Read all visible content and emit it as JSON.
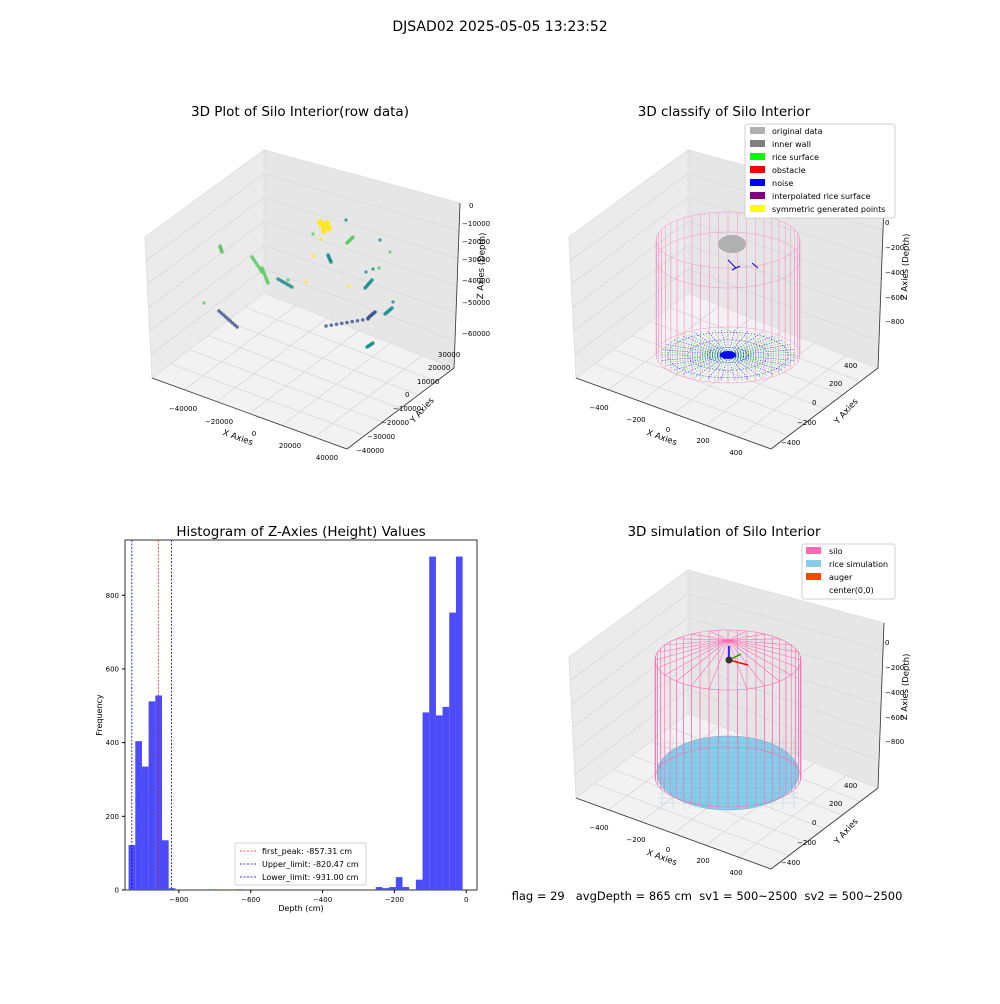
{
  "figure": {
    "suptitle": "DJSAD02 2025-05-05 13:23:52",
    "status_line": "flag = 29   avgDepth = 865 cm  sv1 = 500~2500  sv2 = 500~2500"
  },
  "chart_data": [
    {
      "type": "scatter",
      "title": "3D Plot of Silo Interior(row data)",
      "xlabel": "X Axies",
      "ylabel": "Y Axies",
      "zlabel": "Z Axies (Depth)",
      "x_ticks": [
        "−40000",
        "−20000",
        "0",
        "20000",
        "40000"
      ],
      "y_ticks": [
        "−40000",
        "−30000",
        "−20000",
        "−10000",
        "0",
        "10000",
        "20000",
        "30000"
      ],
      "z_ticks": [
        "0",
        "−10000",
        "−20000",
        "−30000",
        "−40000",
        "−50000",
        "−60000"
      ],
      "colormap": [
        "#440154",
        "#3b528b",
        "#21918c",
        "#5ec962",
        "#fde725"
      ]
    },
    {
      "type": "scatter",
      "title": "3D classify of Silo Interior",
      "xlabel": "X Axies",
      "ylabel": "Y Axies",
      "zlabel": "Z Axies (Depth)",
      "x_ticks": [
        "−400",
        "−200",
        "0",
        "200",
        "400"
      ],
      "y_ticks": [
        "−400",
        "−200",
        "0",
        "200",
        "400"
      ],
      "z_ticks": [
        "0",
        "−200",
        "−400",
        "−600",
        "−800"
      ],
      "legend_position": "top-right",
      "legend": [
        {
          "label": "original data",
          "color": "#b0b0b0"
        },
        {
          "label": "inner wall",
          "color": "#808080"
        },
        {
          "label": "rice surface",
          "color": "#00ff00"
        },
        {
          "label": "obstacle",
          "color": "#ff0000"
        },
        {
          "label": "noise",
          "color": "#0000ff"
        },
        {
          "label": "interpolated rice surface",
          "color": "#800080"
        },
        {
          "label": "symmetric generated points",
          "color": "#ffff00"
        }
      ]
    },
    {
      "type": "bar",
      "title": "Histogram of Z-Axies (Height) Values",
      "xlabel": "Depth (cm)",
      "ylabel": "Frequency",
      "xlim": [
        -950,
        30
      ],
      "ylim": [
        0,
        950
      ],
      "x_ticks": [
        -800,
        -600,
        -400,
        -200,
        0
      ],
      "y_ticks": [
        0,
        200,
        400,
        600,
        800
      ],
      "bin_width": 18.6,
      "bins": [
        {
          "x": -940,
          "v": 122
        },
        {
          "x": -921.4,
          "v": 404
        },
        {
          "x": -902.8,
          "v": 335
        },
        {
          "x": -884.2,
          "v": 512
        },
        {
          "x": -865.6,
          "v": 528
        },
        {
          "x": -847,
          "v": 135
        },
        {
          "x": -828.4,
          "v": 5
        },
        {
          "x": -716.8,
          "v": 2
        },
        {
          "x": -642.4,
          "v": 2
        },
        {
          "x": -251.8,
          "v": 8
        },
        {
          "x": -233.2,
          "v": 5
        },
        {
          "x": -214.6,
          "v": 8
        },
        {
          "x": -196,
          "v": 35
        },
        {
          "x": -177.4,
          "v": 8
        },
        {
          "x": -158.8,
          "v": 2
        },
        {
          "x": -140.2,
          "v": 28
        },
        {
          "x": -121.6,
          "v": 482
        },
        {
          "x": -103,
          "v": 905
        },
        {
          "x": -84.4,
          "v": 474
        },
        {
          "x": -65.8,
          "v": 497
        },
        {
          "x": -47.2,
          "v": 753
        },
        {
          "x": -28.6,
          "v": 905
        }
      ],
      "bar_color": "#4b4bfa",
      "lines": [
        {
          "label": "first_peak: -857.31 cm",
          "x": -857.31,
          "color": "#d62728"
        },
        {
          "label": "Upper_limit: -820.47 cm",
          "x": -820.47,
          "color": "#0000cc"
        },
        {
          "label": "Lower_limit: -931.00 cm",
          "x": -931.0,
          "color": "#0000cc"
        }
      ],
      "legend_position": "bottom-center"
    },
    {
      "type": "scatter",
      "title": "3D simulation of Silo Interior",
      "xlabel": "X Axies",
      "ylabel": "Y Axies",
      "zlabel": "Z Axies (Depth)",
      "x_ticks": [
        "−400",
        "−200",
        "0",
        "200",
        "400"
      ],
      "y_ticks": [
        "−400",
        "−200",
        "0",
        "200",
        "400"
      ],
      "z_ticks": [
        "0",
        "−200",
        "−400",
        "−600",
        "−800"
      ],
      "legend_position": "top-right",
      "legend": [
        {
          "label": "silo",
          "color": "#ff69b4"
        },
        {
          "label": "rice simulation",
          "color": "#87ceeb"
        },
        {
          "label": "auger",
          "color": "#ff4500"
        },
        {
          "label": "center(0,0)",
          "color": "none"
        }
      ]
    }
  ]
}
